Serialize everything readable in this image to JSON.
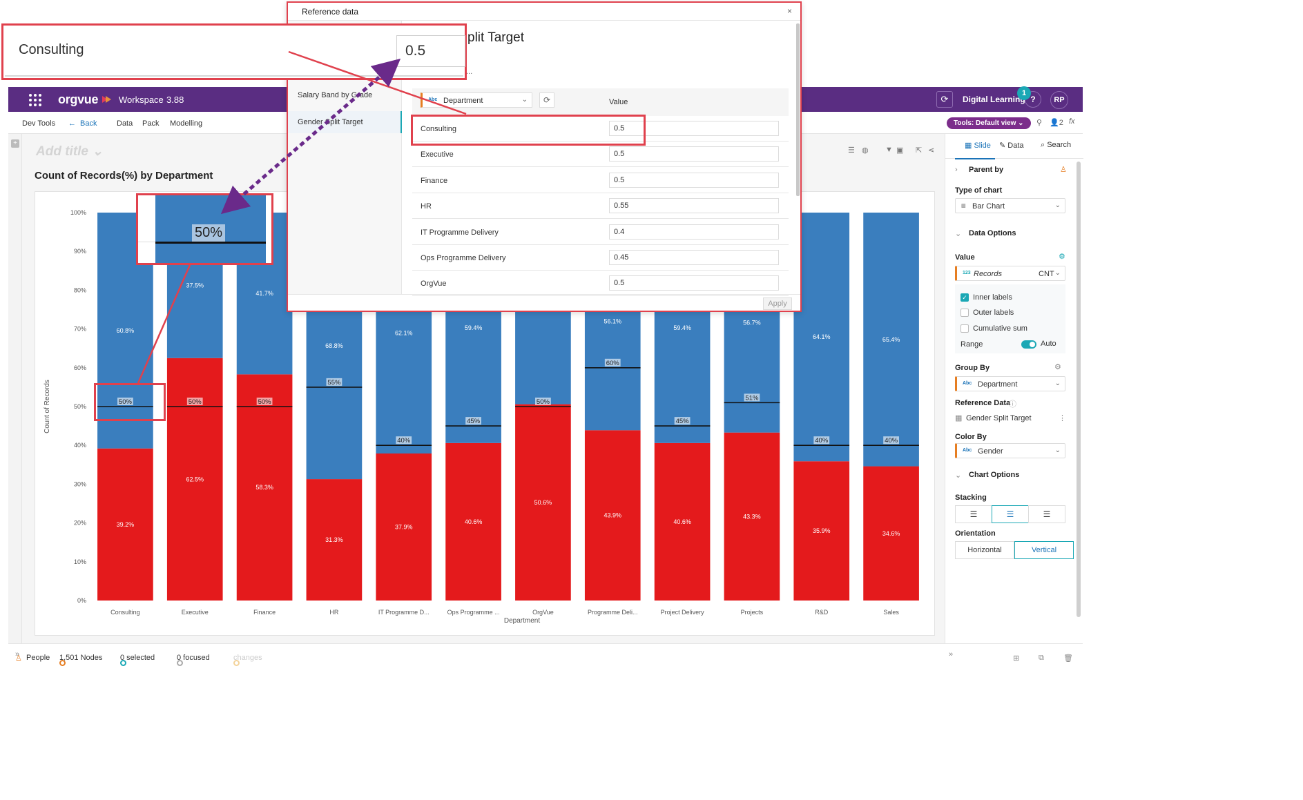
{
  "topbar": {
    "logo": "orgvue",
    "workspace_label": "Workspace",
    "workspace_version": "3.88",
    "user_label": "Digital Learning",
    "notification_count": "1",
    "help": "?",
    "avatar_initials": "RP"
  },
  "menubar": {
    "dev_tools": "Dev Tools",
    "back": "Back",
    "data": "Data",
    "pack": "Pack",
    "modelling": "Modelling",
    "tools_view": "Tools: Default view",
    "users_count": "2",
    "fx": "fx"
  },
  "slide": {
    "add_title": "Add title",
    "chart_title": "Count of Records(%) by Department"
  },
  "chart_data": {
    "type": "bar",
    "stacked": true,
    "title": "Count of Records(%) by Department",
    "xlabel": "Department",
    "ylabel": "Count of Records",
    "ylim": [
      0,
      100
    ],
    "yticks": [
      "0%",
      "10%",
      "20%",
      "30%",
      "40%",
      "50%",
      "60%",
      "70%",
      "80%",
      "90%",
      "100%"
    ],
    "categories": [
      "Consulting",
      "Executive",
      "Finance",
      "HR",
      "IT Programme D...",
      "Ops Programme ...",
      "OrgVue",
      "Programme Deli...",
      "Project Delivery",
      "Projects",
      "R&D",
      "Sales"
    ],
    "series": [
      {
        "color": "#e41a1c",
        "values": [
          39.2,
          62.5,
          58.3,
          31.3,
          37.9,
          40.6,
          50.6,
          43.9,
          40.6,
          43.3,
          35.9,
          34.6
        ],
        "labels": [
          "39.2%",
          "62.5%",
          "58.3%",
          "31.3%",
          "37.9%",
          "40.6%",
          "50.6%",
          "43.9%",
          "40.6%",
          "43.3%",
          "35.9%",
          "34.6%"
        ]
      },
      {
        "color": "#3a7ebe",
        "values": [
          60.8,
          37.5,
          41.7,
          68.8,
          62.1,
          59.4,
          49.4,
          56.1,
          59.4,
          56.7,
          64.1,
          65.4
        ],
        "labels": [
          "60.8%",
          "37.5%",
          "41.7%",
          "68.8%",
          "62.1%",
          "59.4%",
          "",
          "56.1%",
          "59.4%",
          "56.7%",
          "64.1%",
          "65.4%"
        ]
      }
    ],
    "reference_values": [
      50,
      50,
      50,
      55,
      40,
      45,
      50,
      60,
      45,
      51,
      40,
      40
    ],
    "reference_labels": [
      "50%",
      "50%",
      "50%",
      "55%",
      "40%",
      "45%",
      "50%",
      "60%",
      "45%",
      "51%",
      "40%",
      "40%"
    ]
  },
  "right_panel": {
    "tab_slide": "Slide",
    "tab_data": "Data",
    "tab_search": "Search",
    "parent_by": "Parent by",
    "type_of_chart_label": "Type of chart",
    "type_of_chart_value": "Bar Chart",
    "data_options": "Data Options",
    "value_label": "Value",
    "value_field": "Records",
    "value_field_type": "123",
    "value_agg": "CNT",
    "inner_labels": "Inner labels",
    "outer_labels": "Outer labels",
    "cumulative_sum": "Cumulative sum",
    "range_label": "Range",
    "range_value": "Auto",
    "group_by_label": "Group By",
    "group_by_value": "Department",
    "reference_data_label": "Reference Data",
    "reference_data_value": "Gender Split Target",
    "color_by_label": "Color By",
    "color_by_value": "Gender",
    "chart_options": "Chart Options",
    "stacking_label": "Stacking",
    "orientation_label": "Orientation",
    "orientation_horizontal": "Horizontal",
    "orientation_vertical": "Vertical",
    "abc": "Abc"
  },
  "statusbar": {
    "people": "People",
    "nodes": "1,501 Nodes",
    "selected": "0 selected",
    "focused": "0 focused",
    "changes": "changes"
  },
  "dialog": {
    "title": "Reference data",
    "close": "×",
    "sidebar_items": [
      "Salary Band by Grade",
      "Gender Split Target"
    ],
    "heading": "plit Target",
    "ellipsis": "...",
    "department_select": "Department",
    "value_header": "Value",
    "rows": [
      {
        "name": "Consulting",
        "value": "0.5"
      },
      {
        "name": "Executive",
        "value": "0.5"
      },
      {
        "name": "Finance",
        "value": "0.5"
      },
      {
        "name": "HR",
        "value": "0.55"
      },
      {
        "name": "IT Programme Delivery",
        "value": "0.4"
      },
      {
        "name": "Ops Programme Delivery",
        "value": "0.45"
      },
      {
        "name": "OrgVue",
        "value": "0.5"
      }
    ],
    "apply": "Apply"
  },
  "zoom": {
    "name": "Consulting",
    "value": "0.5",
    "bar_label": "50%"
  },
  "colors": {
    "brand": "#5a2d82",
    "accent": "#1ba8b5",
    "annotation": "#e0414d",
    "arrow": "#6a2a8a"
  }
}
